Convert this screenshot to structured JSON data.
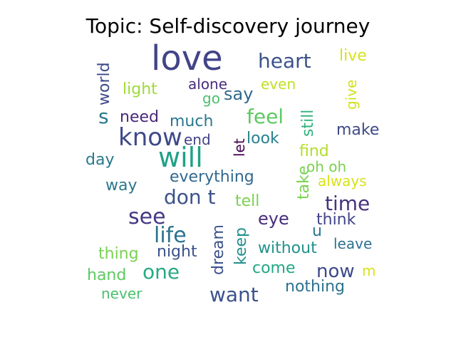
{
  "title": "Topic: Self-discovery journey",
  "words": [
    {
      "text": "love",
      "color": "#414487"
    },
    {
      "text": "heart",
      "color": "#3b528b"
    },
    {
      "text": "live",
      "color": "#d8e219"
    },
    {
      "text": "world",
      "color": "#3e4989"
    },
    {
      "text": "light",
      "color": "#a0da39"
    },
    {
      "text": "alone",
      "color": "#472d7b"
    },
    {
      "text": "even",
      "color": "#c2df23"
    },
    {
      "text": "give",
      "color": "#d0e11c"
    },
    {
      "text": "go",
      "color": "#4ac16d"
    },
    {
      "text": "say",
      "color": "#31688e"
    },
    {
      "text": "still",
      "color": "#2db27d"
    },
    {
      "text": "s",
      "color": "#2a788e"
    },
    {
      "text": "need",
      "color": "#482878"
    },
    {
      "text": "much",
      "color": "#2a788e"
    },
    {
      "text": "feel",
      "color": "#5ec962"
    },
    {
      "text": "make",
      "color": "#3e4989"
    },
    {
      "text": "know",
      "color": "#3e4989"
    },
    {
      "text": "will",
      "color": "#1fa187"
    },
    {
      "text": "end",
      "color": "#414487"
    },
    {
      "text": "let",
      "color": "#440154"
    },
    {
      "text": "look",
      "color": "#26828e"
    },
    {
      "text": "find",
      "color": "#b5de2b"
    },
    {
      "text": "day",
      "color": "#2a788e"
    },
    {
      "text": "oh oh",
      "color": "#7ad151"
    },
    {
      "text": "everything",
      "color": "#31688e"
    },
    {
      "text": "take",
      "color": "#7ad151"
    },
    {
      "text": "always",
      "color": "#d8e219"
    },
    {
      "text": "way",
      "color": "#2a788e"
    },
    {
      "text": "don t",
      "color": "#3b528b"
    },
    {
      "text": "tell",
      "color": "#7ad151"
    },
    {
      "text": "time",
      "color": "#46327e"
    },
    {
      "text": "see",
      "color": "#443983"
    },
    {
      "text": "eye",
      "color": "#472d7b"
    },
    {
      "text": "think",
      "color": "#414487"
    },
    {
      "text": "life",
      "color": "#2c728e"
    },
    {
      "text": "dream",
      "color": "#3b528b"
    },
    {
      "text": "keep",
      "color": "#21918c"
    },
    {
      "text": "u",
      "color": "#2a788e"
    },
    {
      "text": "leave",
      "color": "#2c728e"
    },
    {
      "text": "thing",
      "color": "#7ad151"
    },
    {
      "text": "night",
      "color": "#3b528b"
    },
    {
      "text": "without",
      "color": "#21918c"
    },
    {
      "text": "one",
      "color": "#25ab82"
    },
    {
      "text": "come",
      "color": "#22a884"
    },
    {
      "text": "now",
      "color": "#3e4989"
    },
    {
      "text": "m",
      "color": "#d8e219"
    },
    {
      "text": "hand",
      "color": "#5ec962"
    },
    {
      "text": "want",
      "color": "#3b528b"
    },
    {
      "text": "never",
      "color": "#4ac16d"
    },
    {
      "text": "nothing",
      "color": "#2c728e"
    }
  ]
}
